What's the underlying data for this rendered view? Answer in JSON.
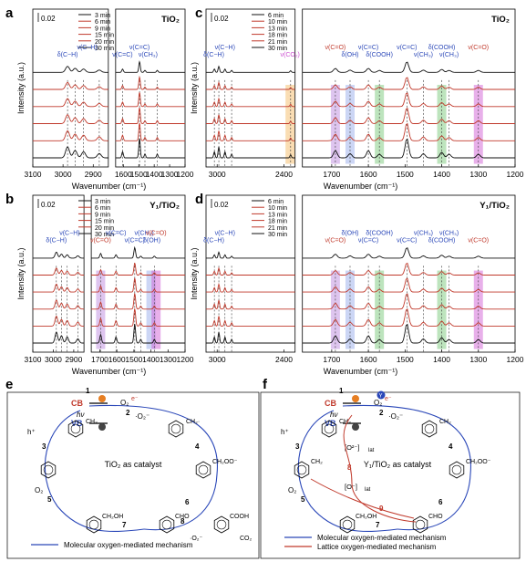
{
  "panel_labels": [
    "a",
    "b",
    "c",
    "d",
    "e",
    "f"
  ],
  "common": {
    "ylabel": "Intensity (a.u.)",
    "xlabel": "Wavenumber (cm⁻¹)",
    "xlabel_c": "Wavenumber (cm⁻¹)",
    "scale_bar": "0.02",
    "legend_ab": [
      "3 min",
      "6 min",
      "9 min",
      "15 min",
      "20 min",
      "30 min"
    ],
    "legend_cd": [
      "6 min",
      "10 min",
      "13 min",
      "18 min",
      "21 min",
      "30 min"
    ],
    "series_colors": [
      "#111111",
      "#c0392b",
      "#c0392b",
      "#c0392b",
      "#c0392b",
      "#111111"
    ],
    "colors": {
      "blue": "#2a47b8",
      "red": "#c0392b",
      "purple": "#b57edc",
      "blue_band": "#8fa3e8",
      "green": "#6cc36c",
      "orange": "#f4b356",
      "magenta": "#cc4fd0"
    }
  },
  "chart_data": [
    {
      "panel": "a",
      "type": "line",
      "title": "TiO₂",
      "xlabel": "Wavenumber (cm⁻¹)",
      "ylabel": "Intensity (a.u.)",
      "segments": [
        {
          "xlim": [
            3100,
            2850
          ]
        },
        {
          "xlim": [
            1650,
            1200
          ]
        }
      ],
      "tick_labels": [
        "3100",
        "3000",
        "2900",
        "1600",
        "1500",
        "1400",
        "1300",
        "1200"
      ],
      "peaks": [
        2985,
        2960,
        2932,
        2880,
        1605,
        1495,
        1460,
        1380
      ],
      "annotations": [
        {
          "text": "δ(C−H)",
          "x": 2985
        },
        {
          "text": "ν(C−H)",
          "x": 2920
        },
        {
          "text": "ν(C=C)",
          "x": 1605
        },
        {
          "text": "ν(C=C)",
          "x": 1495
        },
        {
          "text": "ν(CH₃)",
          "x": 1440
        }
      ],
      "series": [
        {
          "name": "3 min"
        },
        {
          "name": "6 min"
        },
        {
          "name": "9 min"
        },
        {
          "name": "15 min"
        },
        {
          "name": "20 min"
        },
        {
          "name": "30 min"
        }
      ]
    },
    {
      "panel": "b",
      "type": "line",
      "title": "Y₁/TiO₂",
      "xlabel": "Wavenumber (cm⁻¹)",
      "ylabel": "Intensity (a.u.)",
      "segments": [
        {
          "xlim": [
            3100,
            2850
          ]
        },
        {
          "xlim": [
            1750,
            1200
          ]
        }
      ],
      "tick_labels": [
        "3100",
        "3000",
        "2900",
        "1700",
        "1600",
        "1500",
        "1400",
        "1300",
        "1200"
      ],
      "peaks": [
        2985,
        2960,
        2932,
        2880,
        1695,
        1605,
        1495,
        1460,
        1380
      ],
      "annotations": [
        {
          "text": "δ(C−H)",
          "x": 2985
        },
        {
          "text": "ν(C−H)",
          "x": 2920
        },
        {
          "text": "ν(C=O)",
          "x": 1695
        },
        {
          "text": "ν(C=C)",
          "x": 1605
        },
        {
          "text": "ν(C=C)",
          "x": 1495
        },
        {
          "text": "ν(CH₃)",
          "x": 1440
        },
        {
          "text": "δ(OH)",
          "x": 1395
        },
        {
          "text": "ν(C=O)",
          "x": 1370
        }
      ],
      "series": [
        {
          "name": "3 min"
        },
        {
          "name": "6 min"
        },
        {
          "name": "9 min"
        },
        {
          "name": "15 min"
        },
        {
          "name": "20 min"
        },
        {
          "name": "30 min"
        }
      ]
    },
    {
      "panel": "c",
      "type": "line",
      "title": "TiO₂",
      "xlabel": "Wavenumber (cm⁻¹)",
      "ylabel": "Intensity (a.u.)",
      "segments": [
        {
          "xlim": [
            3100,
            2300
          ]
        },
        {
          "xlim": [
            1780,
            1200
          ]
        }
      ],
      "tick_labels": [
        "3000",
        "2400",
        "1700",
        "1600",
        "1500",
        "1400",
        "1300",
        "1200"
      ],
      "peaks": [
        3025,
        2985,
        2930,
        2870,
        2340,
        1690,
        1650,
        1600,
        1570,
        1495,
        1450,
        1400,
        1380,
        1300
      ],
      "annotations": [
        {
          "text": "δ(C−H)",
          "x": 3030
        },
        {
          "text": "ν(C−H)",
          "x": 2930
        },
        {
          "text": "ν(CO₂)",
          "x": 2345
        },
        {
          "text": "ν(C=O)",
          "x": 1690
        },
        {
          "text": "δ(OH)",
          "x": 1650
        },
        {
          "text": "ν(C=C)",
          "x": 1600
        },
        {
          "text": "δ(COOH)",
          "x": 1570
        },
        {
          "text": "ν(C=C)",
          "x": 1495
        },
        {
          "text": "ν(CH₃)",
          "x": 1450
        },
        {
          "text": "δ(COOH)",
          "x": 1400
        },
        {
          "text": "ν(CH₃)",
          "x": 1380
        },
        {
          "text": "ν(C=O)",
          "x": 1300
        }
      ],
      "series": [
        {
          "name": "6 min"
        },
        {
          "name": "10 min"
        },
        {
          "name": "13 min"
        },
        {
          "name": "18 min"
        },
        {
          "name": "21 min"
        },
        {
          "name": "30 min"
        }
      ]
    },
    {
      "panel": "d",
      "type": "line",
      "title": "Y₁/TiO₂",
      "xlabel": "Wavenumber (cm⁻¹)",
      "ylabel": "Intensity (a.u.)",
      "segments": [
        {
          "xlim": [
            3100,
            2300
          ]
        },
        {
          "xlim": [
            1780,
            1200
          ]
        }
      ],
      "tick_labels": [
        "3000",
        "2400",
        "1700",
        "1600",
        "1500",
        "1400",
        "1300",
        "1200"
      ],
      "peaks": [
        3025,
        2985,
        2930,
        2870,
        1690,
        1650,
        1600,
        1570,
        1495,
        1450,
        1400,
        1380,
        1300
      ],
      "annotations": [
        {
          "text": "δ(C−H)",
          "x": 3030
        },
        {
          "text": "ν(C−H)",
          "x": 2930
        },
        {
          "text": "ν(C=O)",
          "x": 1690
        },
        {
          "text": "δ(OH)",
          "x": 1650
        },
        {
          "text": "ν(C=C)",
          "x": 1600
        },
        {
          "text": "δ(COOH)",
          "x": 1570
        },
        {
          "text": "ν(C=C)",
          "x": 1495
        },
        {
          "text": "ν(CH₃)",
          "x": 1450
        },
        {
          "text": "δ(COOH)",
          "x": 1400
        },
        {
          "text": "ν(CH₃)",
          "x": 1380
        },
        {
          "text": "ν(C=O)",
          "x": 1300
        }
      ],
      "series": [
        {
          "name": "6 min"
        },
        {
          "name": "10 min"
        },
        {
          "name": "13 min"
        },
        {
          "name": "18 min"
        },
        {
          "name": "21 min"
        },
        {
          "name": "30 min"
        }
      ]
    }
  ],
  "diagram_e": {
    "catalyst_label": "TiO₂ as catalyst",
    "legend": [
      "Molecular oxygen-mediated  mechanism"
    ],
    "cb": "CB",
    "vb": "VB",
    "hv": "hν",
    "species": {
      "o2": "O₂",
      "o2_rad": "·O₂⁻",
      "e": "e⁻",
      "h": "h⁺",
      "ch2o2": "CH₂OO⁻",
      "ch2oh": "CH₂OH",
      "cho": "CHO",
      "cooh": "COOH",
      "co2": "CO₂",
      "ch2": "CH₂·",
      "ch3": "CH₃",
      "o2_rad2": "·O₂⁻"
    },
    "steps": [
      "1",
      "2",
      "3",
      "4",
      "5",
      "6",
      "7",
      "8"
    ]
  },
  "diagram_f": {
    "catalyst_label": "Y₁/TiO₂ as catalyst",
    "legend": [
      "Molecular oxygen-mediated  mechanism",
      "Lattice oxygen-mediated mechanism"
    ],
    "cb": "CB",
    "vb": "VB",
    "hv": "hν",
    "species": {
      "o2": "O₂",
      "o2_rad": "·O₂⁻",
      "e": "e⁻",
      "h": "h⁺",
      "ch2o2": "CH₂OO⁻",
      "ch2oh": "CH₂OH",
      "cho": "CHO",
      "ch3": "CH₃",
      "ch2": "CH₂",
      "lat1": "[O²⁻]",
      "lat2": "[O⁻]",
      "lat_sub": "lat",
      "y": "Y"
    },
    "steps": [
      "1",
      "2",
      "3",
      "4",
      "5",
      "6",
      "7",
      "8",
      "9"
    ]
  }
}
